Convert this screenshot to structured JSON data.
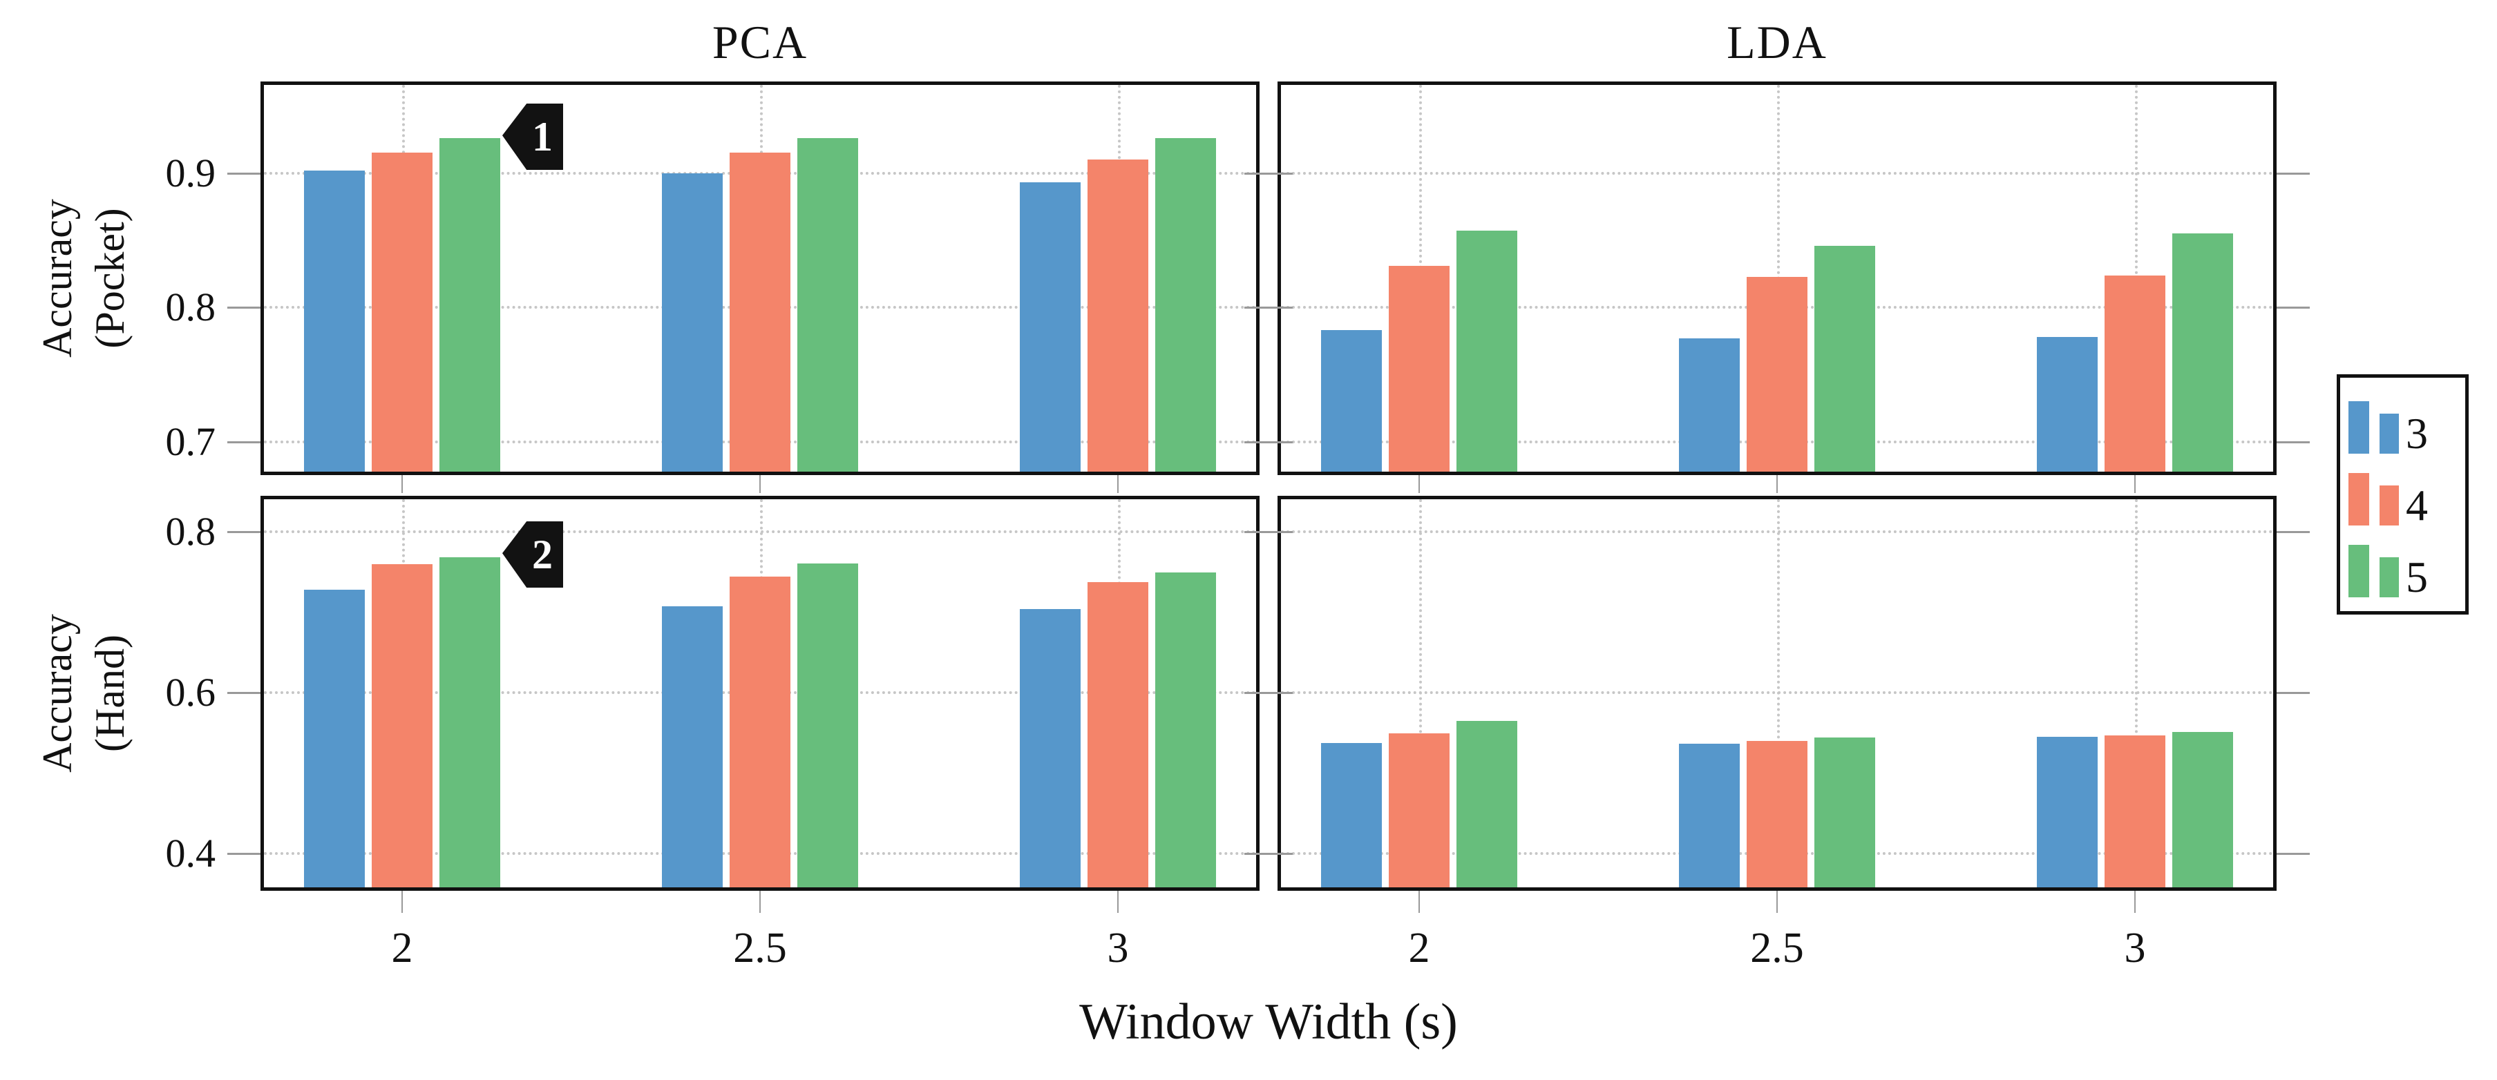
{
  "figure": {
    "xlabel": "Window Width (s)",
    "row_labels": {
      "pocket": [
        "Accuracy",
        "(Pocket)"
      ],
      "hand": [
        "Accuracy",
        "(Hand)"
      ]
    },
    "series_colors": [
      "#5697CB",
      "#F4846A",
      "#67BE7C"
    ],
    "axis_color": "#111111",
    "grid_color": "#c6c6c6",
    "annotation_bg": "#121212",
    "legend": {
      "entries": [
        {
          "label": "3",
          "color": "#5697CB"
        },
        {
          "label": "4",
          "color": "#F4846A"
        },
        {
          "label": "5",
          "color": "#67BE7C"
        }
      ]
    },
    "annotations": [
      {
        "label": "1",
        "target": "pca-pocket",
        "category": "2",
        "series": "5"
      },
      {
        "label": "2",
        "target": "pca-hand",
        "category": "2",
        "series": "5"
      }
    ]
  },
  "chart_data": [
    {
      "id": "pca-pocket",
      "type": "bar",
      "title": "PCA",
      "ylabel": "Accuracy (Pocket)",
      "categories": [
        "2",
        "2.5",
        "3"
      ],
      "series": [
        {
          "name": "3",
          "values": [
            0.902,
            0.9,
            0.893
          ]
        },
        {
          "name": "4",
          "values": [
            0.915,
            0.915,
            0.91
          ]
        },
        {
          "name": "5",
          "values": [
            0.926,
            0.926,
            0.926
          ]
        }
      ],
      "ylim": [
        0.678,
        0.9655
      ],
      "yticks": [
        {
          "v": 0.7,
          "label": "0.7"
        },
        {
          "v": 0.8,
          "label": "0.8"
        },
        {
          "v": 0.9,
          "label": "0.9"
        }
      ],
      "grid": true,
      "legend_position": "outside right"
    },
    {
      "id": "lda-pocket",
      "type": "bar",
      "title": "LDA",
      "ylabel": "Accuracy (Pocket)",
      "categories": [
        "2",
        "2.5",
        "3"
      ],
      "series": [
        {
          "name": "3",
          "values": [
            0.783,
            0.777,
            0.778
          ]
        },
        {
          "name": "4",
          "values": [
            0.831,
            0.823,
            0.824
          ]
        },
        {
          "name": "5",
          "values": [
            0.857,
            0.846,
            0.855
          ]
        }
      ],
      "ylim": [
        0.678,
        0.9655
      ],
      "yticks": [
        {
          "v": 0.7,
          "label": "0.7"
        },
        {
          "v": 0.8,
          "label": "0.8"
        },
        {
          "v": 0.9,
          "label": "0.9"
        }
      ],
      "grid": true
    },
    {
      "id": "pca-hand",
      "type": "bar",
      "title": "",
      "ylabel": "Accuracy (Hand)",
      "categories": [
        "2",
        "2.5",
        "3"
      ],
      "series": [
        {
          "name": "3",
          "values": [
            0.728,
            0.707,
            0.704
          ]
        },
        {
          "name": "4",
          "values": [
            0.759,
            0.744,
            0.737
          ]
        },
        {
          "name": "5",
          "values": [
            0.768,
            0.76,
            0.749
          ]
        }
      ],
      "ylim": [
        0.358,
        0.84
      ],
      "yticks": [
        {
          "v": 0.4,
          "label": "0.4"
        },
        {
          "v": 0.6,
          "label": "0.6"
        },
        {
          "v": 0.8,
          "label": "0.8"
        }
      ],
      "grid": true
    },
    {
      "id": "lda-hand",
      "type": "bar",
      "title": "",
      "ylabel": "Accuracy (Hand)",
      "categories": [
        "2",
        "2.5",
        "3"
      ],
      "series": [
        {
          "name": "3",
          "values": [
            0.537,
            0.536,
            0.545
          ]
        },
        {
          "name": "4",
          "values": [
            0.549,
            0.54,
            0.547
          ]
        },
        {
          "name": "5",
          "values": [
            0.565,
            0.544,
            0.551
          ]
        }
      ],
      "ylim": [
        0.358,
        0.84
      ],
      "yticks": [
        {
          "v": 0.4,
          "label": "0.4"
        },
        {
          "v": 0.6,
          "label": "0.6"
        },
        {
          "v": 0.8,
          "label": "0.8"
        }
      ],
      "grid": true
    }
  ]
}
